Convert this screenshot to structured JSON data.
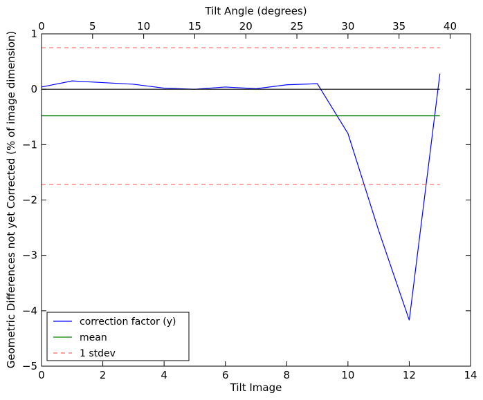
{
  "chart_data": {
    "type": "line",
    "x_bottom": {
      "label": "Tilt Image",
      "range": [
        0,
        14
      ],
      "ticks": [
        0,
        2,
        4,
        6,
        8,
        10,
        12,
        14
      ]
    },
    "x_top": {
      "label": "Tilt Angle (degrees)",
      "range": [
        0,
        42
      ],
      "ticks": [
        0,
        5,
        10,
        15,
        20,
        25,
        30,
        35,
        40
      ]
    },
    "y": {
      "label": "Geometric Differences not yet Corrected (% of image dimension)",
      "range": [
        -5,
        1
      ],
      "ticks": [
        1,
        0,
        -1,
        -2,
        -3,
        -4,
        -5
      ],
      "tick_labels": [
        "1",
        "0",
        "−1",
        "−2",
        "−3",
        "−4",
        "−5"
      ]
    },
    "series": [
      {
        "name": "correction factor (y)",
        "color": "#0000ff",
        "style": "solid",
        "x": [
          0,
          1,
          2,
          3,
          4,
          5,
          6,
          7,
          8,
          9,
          10,
          11,
          12,
          13
        ],
        "y": [
          0.04,
          0.15,
          0.12,
          0.09,
          0.02,
          0.0,
          0.04,
          0.01,
          0.08,
          0.1,
          -0.8,
          -2.55,
          -4.17,
          0.28
        ]
      },
      {
        "name": "mean",
        "color": "#008000",
        "style": "solid",
        "x": [
          0,
          13
        ],
        "y": [
          -0.48,
          -0.48
        ]
      },
      {
        "name": "1 stdev",
        "color": "#ff0000",
        "style": "dashed",
        "x": [
          0,
          13
        ],
        "y": [
          0.75,
          0.75
        ]
      },
      {
        "color": "#ff0000",
        "style": "dashed",
        "x": [
          0,
          13
        ],
        "y": [
          -1.72,
          -1.72
        ]
      },
      {
        "color": "#000000",
        "style": "solid",
        "x": [
          0,
          13
        ],
        "y": [
          0,
          0
        ]
      }
    ],
    "legend": {
      "position": "lower-left",
      "entries": [
        "correction factor (y)",
        "mean",
        "1 stdev"
      ]
    },
    "grid": false
  }
}
